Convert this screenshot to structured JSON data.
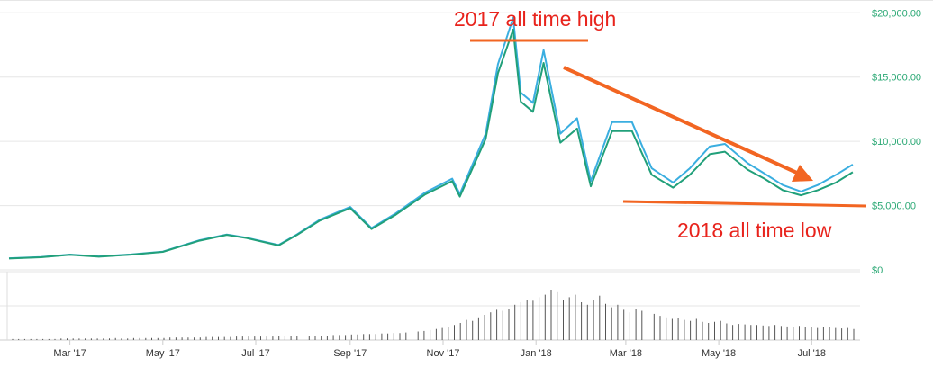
{
  "chart_data": {
    "type": "line",
    "title": "",
    "xlabel": "",
    "ylabel": "",
    "x_tick_labels": [
      "Mar '17",
      "May '17",
      "Jul '17",
      "Sep '17",
      "Nov '17",
      "Jan '18",
      "Mar '18",
      "May '18",
      "Jul '18"
    ],
    "y_tick_labels": [
      "$20,000.00",
      "$15,000.00",
      "$10,000.00",
      "$5,000.00",
      "$0"
    ],
    "y_tick_values": [
      20000,
      15000,
      10000,
      5000,
      0
    ],
    "ylim": [
      0,
      21000
    ],
    "xlim": [
      "2017-01-20",
      "2018-07-31"
    ],
    "grid": true,
    "legend": "none",
    "series": [
      {
        "color": "#3aaee0",
        "points": [
          [
            "2017-01-20",
            900
          ],
          [
            "2017-02-10",
            1000
          ],
          [
            "2017-03-01",
            1190
          ],
          [
            "2017-03-20",
            1040
          ],
          [
            "2017-04-10",
            1200
          ],
          [
            "2017-05-01",
            1420
          ],
          [
            "2017-05-25",
            2300
          ],
          [
            "2017-06-12",
            2750
          ],
          [
            "2017-06-25",
            2500
          ],
          [
            "2017-07-16",
            1930
          ],
          [
            "2017-07-28",
            2750
          ],
          [
            "2017-08-12",
            3900
          ],
          [
            "2017-09-01",
            4900
          ],
          [
            "2017-09-15",
            3250
          ],
          [
            "2017-10-01",
            4400
          ],
          [
            "2017-10-20",
            6000
          ],
          [
            "2017-11-07",
            7100
          ],
          [
            "2017-11-12",
            5900
          ],
          [
            "2017-11-29",
            10600
          ],
          [
            "2017-12-07",
            16000
          ],
          [
            "2017-12-17",
            19600
          ],
          [
            "2017-12-22",
            13800
          ],
          [
            "2017-12-30",
            13000
          ],
          [
            "2018-01-06",
            17100
          ],
          [
            "2018-01-17",
            10600
          ],
          [
            "2018-01-28",
            11800
          ],
          [
            "2018-02-06",
            6900
          ],
          [
            "2018-02-20",
            11500
          ],
          [
            "2018-03-05",
            11500
          ],
          [
            "2018-03-18",
            7900
          ],
          [
            "2018-04-01",
            6800
          ],
          [
            "2018-04-12",
            7900
          ],
          [
            "2018-04-25",
            9600
          ],
          [
            "2018-05-05",
            9800
          ],
          [
            "2018-05-20",
            8300
          ],
          [
            "2018-05-31",
            7500
          ],
          [
            "2018-06-12",
            6600
          ],
          [
            "2018-06-24",
            6100
          ],
          [
            "2018-07-05",
            6600
          ],
          [
            "2018-07-17",
            7400
          ],
          [
            "2018-07-28",
            8200
          ]
        ]
      },
      {
        "color": "#21a07a",
        "points": [
          [
            "2017-01-20",
            880
          ],
          [
            "2017-02-10",
            980
          ],
          [
            "2017-03-01",
            1170
          ],
          [
            "2017-03-20",
            1020
          ],
          [
            "2017-04-10",
            1180
          ],
          [
            "2017-05-01",
            1400
          ],
          [
            "2017-05-25",
            2270
          ],
          [
            "2017-06-12",
            2720
          ],
          [
            "2017-06-25",
            2470
          ],
          [
            "2017-07-16",
            1900
          ],
          [
            "2017-07-28",
            2710
          ],
          [
            "2017-08-12",
            3830
          ],
          [
            "2017-09-01",
            4800
          ],
          [
            "2017-09-15",
            3180
          ],
          [
            "2017-10-01",
            4300
          ],
          [
            "2017-10-20",
            5850
          ],
          [
            "2017-11-07",
            6900
          ],
          [
            "2017-11-12",
            5700
          ],
          [
            "2017-11-29",
            10200
          ],
          [
            "2017-12-07",
            15300
          ],
          [
            "2017-12-17",
            18700
          ],
          [
            "2017-12-22",
            13100
          ],
          [
            "2017-12-30",
            12300
          ],
          [
            "2018-01-06",
            16100
          ],
          [
            "2018-01-17",
            9900
          ],
          [
            "2018-01-28",
            11000
          ],
          [
            "2018-02-06",
            6500
          ],
          [
            "2018-02-20",
            10800
          ],
          [
            "2018-03-05",
            10800
          ],
          [
            "2018-03-18",
            7400
          ],
          [
            "2018-04-01",
            6400
          ],
          [
            "2018-04-12",
            7400
          ],
          [
            "2018-04-25",
            9000
          ],
          [
            "2018-05-05",
            9200
          ],
          [
            "2018-05-20",
            7800
          ],
          [
            "2018-05-31",
            7100
          ],
          [
            "2018-06-12",
            6200
          ],
          [
            "2018-06-24",
            5800
          ],
          [
            "2018-07-05",
            6200
          ],
          [
            "2018-07-17",
            6800
          ],
          [
            "2018-07-28",
            7600
          ]
        ]
      }
    ],
    "volume_bars": [
      2,
      2,
      2,
      2,
      2,
      2,
      2,
      2,
      3,
      3,
      3,
      3,
      3,
      3,
      3,
      3,
      3,
      4,
      3,
      3,
      4,
      4,
      4,
      4,
      4,
      4,
      5,
      5,
      5,
      5,
      5,
      5,
      6,
      6,
      6,
      6,
      6,
      7,
      7,
      7,
      7,
      7,
      7,
      7,
      8,
      8,
      8,
      8,
      8,
      8,
      9,
      9,
      9,
      10,
      10,
      10,
      11,
      11,
      12,
      12,
      12,
      13,
      13,
      14,
      14,
      15,
      16,
      17,
      18,
      20,
      22,
      24,
      26,
      30,
      34,
      40,
      38,
      45,
      50,
      55,
      60,
      58,
      62,
      70,
      75,
      80,
      78,
      85,
      90,
      100,
      95,
      80,
      85,
      90,
      75,
      70,
      80,
      88,
      72,
      65,
      70,
      60,
      55,
      62,
      58,
      50,
      52,
      48,
      45,
      42,
      44,
      40,
      38,
      42,
      36,
      34,
      36,
      38,
      33,
      30,
      32,
      31,
      30,
      30,
      29,
      28,
      30,
      28,
      27,
      26,
      28,
      26,
      25,
      24,
      26,
      25,
      24,
      23,
      24,
      22
    ],
    "annotations": [
      "2017 all time high",
      "2018 all time low"
    ]
  },
  "colors": {
    "annotation": "#e8231c",
    "arrow": "#f26522",
    "grid": "#e6e6e6",
    "ytick": "#2aa874",
    "volume": "#555555"
  }
}
